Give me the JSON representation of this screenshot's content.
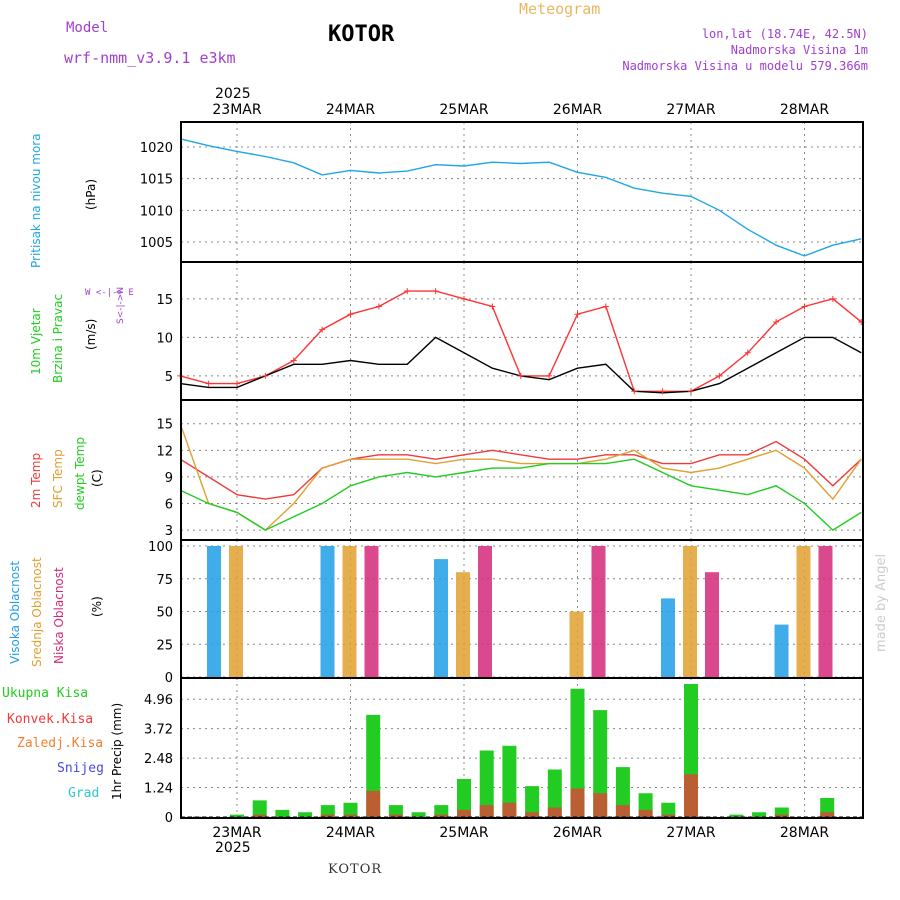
{
  "header": {
    "model_label": "Model",
    "model_name": "wrf-nmm_v3.9.1  e3km",
    "station": "KOTOR",
    "meteogram": "Meteogram",
    "lonlat": "lon,lat (18.74E, 42.5N)",
    "altitude": "Nadmorska Visina 1m",
    "model_altitude": "Nadmorska Visina u modelu 579.366m",
    "year_top": "2025",
    "year_bottom": "2025",
    "footer_station": "KOTOR",
    "watermark": "made by Angel"
  },
  "colors": {
    "pressure": "#1fa6e6",
    "wind_speed": "#ff3333",
    "wind_black": "#000000",
    "t2m": "#ee3a3a",
    "sfc": "#e0a030",
    "dewpt": "#22cc22",
    "cloud_high": "#1f9fe6",
    "cloud_mid": "#e0a030",
    "cloud_low": "#d4287a",
    "precip_total": "#22cc22",
    "precip_conv": "#ee3a3a",
    "label_purple": "#a040d0"
  },
  "axes": {
    "days": [
      "23MAR",
      "24MAR",
      "25MAR",
      "26MAR",
      "27MAR",
      "28MAR"
    ]
  },
  "panels": {
    "pressure": {
      "title": "Pritisak na nivou mora",
      "unit": "(hPa)",
      "ticks": [
        "1020",
        "1015",
        "1010",
        "1005"
      ]
    },
    "wind": {
      "title1": "10m Vjetar",
      "title2": "Brzina i Pravac",
      "unit": "(m/s)",
      "ticks": [
        "15",
        "10",
        "5"
      ],
      "compass_ew": "W <-|-> E",
      "compass_ns": "S<-|->N"
    },
    "temp": {
      "t2m": "2m Temp",
      "sfc": "SFC Temp",
      "dewpt": "dewpt Temp",
      "unit": "(C)",
      "ticks": [
        "15",
        "12",
        "9",
        "6",
        "3"
      ]
    },
    "cloud": {
      "high": "Visoka Oblacnost",
      "mid": "Srednja Oblacnost",
      "low": "Niska Oblacnost",
      "unit": "(%)",
      "ticks": [
        "100",
        "75",
        "50",
        "25",
        "0"
      ]
    },
    "precip": {
      "unit": "1hr Precip (mm)",
      "ticks": [
        "4.96",
        "3.72",
        "2.48",
        "1.24",
        "0"
      ],
      "legend": [
        "Ukupna Kisa",
        "Konvek.Kisa",
        "Zaledj.Kisa",
        "Snijeg",
        "Grad"
      ]
    }
  },
  "chart_data": [
    {
      "type": "line",
      "title": "Pritisak na nivou mora",
      "ylabel": "(hPa)",
      "ylim": [
        1002,
        1023
      ],
      "x": [
        0,
        0.25,
        0.5,
        0.75,
        1,
        1.25,
        1.5,
        1.75,
        2,
        2.25,
        2.5,
        2.75,
        3,
        3.25,
        3.5,
        3.75,
        4,
        4.25,
        4.5,
        4.75,
        5,
        5.25,
        5.5,
        5.75,
        6
      ],
      "values": [
        1021.3,
        1020.2,
        1019.3,
        1018.5,
        1017.5,
        1015.6,
        1016.3,
        1015.9,
        1016.2,
        1017.2,
        1017.0,
        1017.6,
        1017.4,
        1017.6,
        1016.0,
        1015.2,
        1013.5,
        1012.7,
        1012.2,
        1010.0,
        1007.0,
        1004.5,
        1002.8,
        1004.5,
        1005.5
      ]
    },
    {
      "type": "line",
      "title": "10m Vjetar Brzina i Pravac",
      "ylabel": "(m/s)",
      "ylim": [
        2,
        19
      ],
      "x": [
        0,
        0.25,
        0.5,
        0.75,
        1,
        1.25,
        1.5,
        1.75,
        2,
        2.25,
        2.5,
        2.75,
        3,
        3.25,
        3.5,
        3.75,
        4,
        4.25,
        4.5,
        4.75,
        5,
        5.25,
        5.5,
        5.75,
        6
      ],
      "series": [
        {
          "name": "speed",
          "values": [
            5,
            4,
            4,
            5,
            7,
            11,
            13,
            14,
            16,
            16,
            15,
            14,
            5,
            5,
            13,
            14,
            3,
            3,
            3,
            5,
            8,
            12,
            14,
            15,
            12
          ]
        },
        {
          "name": "gust",
          "values": [
            4,
            3.5,
            3.5,
            5,
            6.5,
            6.5,
            7,
            6.5,
            6.5,
            10,
            8,
            6,
            5,
            4.5,
            6,
            6.5,
            3,
            2.8,
            3,
            4,
            6,
            8,
            10,
            10,
            8
          ]
        }
      ]
    },
    {
      "type": "line",
      "title": "2m Temp / SFC Temp / dewpt Temp",
      "ylabel": "(C)",
      "ylim": [
        2,
        17
      ],
      "x": [
        0,
        0.25,
        0.5,
        0.75,
        1,
        1.25,
        1.5,
        1.75,
        2,
        2.25,
        2.5,
        2.75,
        3,
        3.25,
        3.5,
        3.75,
        4,
        4.25,
        4.5,
        4.75,
        5,
        5.25,
        5.5,
        5.75,
        6
      ],
      "series": [
        {
          "name": "2m Temp",
          "values": [
            11,
            9,
            7,
            6.5,
            7,
            10,
            11,
            11.5,
            11.5,
            11,
            11.5,
            12,
            11.5,
            11,
            11,
            11.5,
            11.5,
            10.5,
            10.5,
            11.5,
            11.5,
            13,
            11,
            8,
            11
          ]
        },
        {
          "name": "SFC Temp",
          "values": [
            15,
            6,
            5,
            3,
            6,
            10,
            11,
            11,
            11,
            10.5,
            11,
            11,
            10.5,
            10.5,
            10.5,
            11,
            12,
            10,
            9.5,
            10,
            11,
            12,
            10,
            6.5,
            11
          ]
        },
        {
          "name": "dewpt Temp",
          "values": [
            7.5,
            6,
            5,
            3,
            4.5,
            6,
            8,
            9,
            9.5,
            9,
            9.5,
            10,
            10,
            10.5,
            10.5,
            10.5,
            11,
            9.5,
            8,
            7.5,
            7,
            8,
            6,
            3,
            5
          ]
        }
      ]
    },
    {
      "type": "bar",
      "title": "Visoka / Srednja / Niska Oblacnost",
      "ylabel": "(%)",
      "ylim": [
        0,
        100
      ],
      "categories": [
        "23MAR",
        "24MAR",
        "25MAR",
        "26MAR",
        "27MAR",
        "28MAR"
      ],
      "series": [
        {
          "name": "Visoka Oblacnost",
          "values": [
            100,
            100,
            90,
            0,
            60,
            40
          ]
        },
        {
          "name": "Srednja Oblacnost",
          "values": [
            100,
            100,
            80,
            50,
            100,
            100
          ]
        },
        {
          "name": "Niska Oblacnost",
          "values": [
            0,
            100,
            100,
            100,
            80,
            100
          ]
        }
      ]
    },
    {
      "type": "bar",
      "title": "1hr Precip",
      "ylabel": "1hr Precip (mm)",
      "ylim": [
        0,
        5.6
      ],
      "x": [
        0.1,
        0.3,
        0.5,
        0.7,
        0.9,
        1.1,
        1.3,
        1.5,
        1.7,
        1.9,
        2.1,
        2.3,
        2.5,
        2.7,
        2.9,
        3.1,
        3.3,
        3.5,
        3.7,
        3.9,
        4.1,
        4.3,
        4.5,
        4.7,
        4.9,
        5.1,
        5.3,
        5.5,
        5.7,
        5.9
      ],
      "series": [
        {
          "name": "Ukupna Kisa",
          "values": [
            0,
            0,
            0.1,
            0.7,
            0.3,
            0.2,
            0.5,
            0.6,
            4.3,
            0.5,
            0.2,
            0.5,
            1.6,
            2.8,
            3.0,
            1.3,
            2.0,
            5.4,
            4.5,
            2.1,
            1.0,
            0.6,
            5.6,
            0.0,
            0.1,
            0.2,
            0.4,
            0.0,
            0.8,
            0.0
          ]
        },
        {
          "name": "Konvek.Kisa",
          "values": [
            0,
            0,
            0,
            0.1,
            0,
            0,
            0.1,
            0.1,
            1.1,
            0.1,
            0,
            0.1,
            0.3,
            0.5,
            0.6,
            0.2,
            0.4,
            1.2,
            1.0,
            0.5,
            0.3,
            0.1,
            1.8,
            0,
            0,
            0,
            0.1,
            0,
            0.2,
            0
          ]
        }
      ]
    }
  ]
}
